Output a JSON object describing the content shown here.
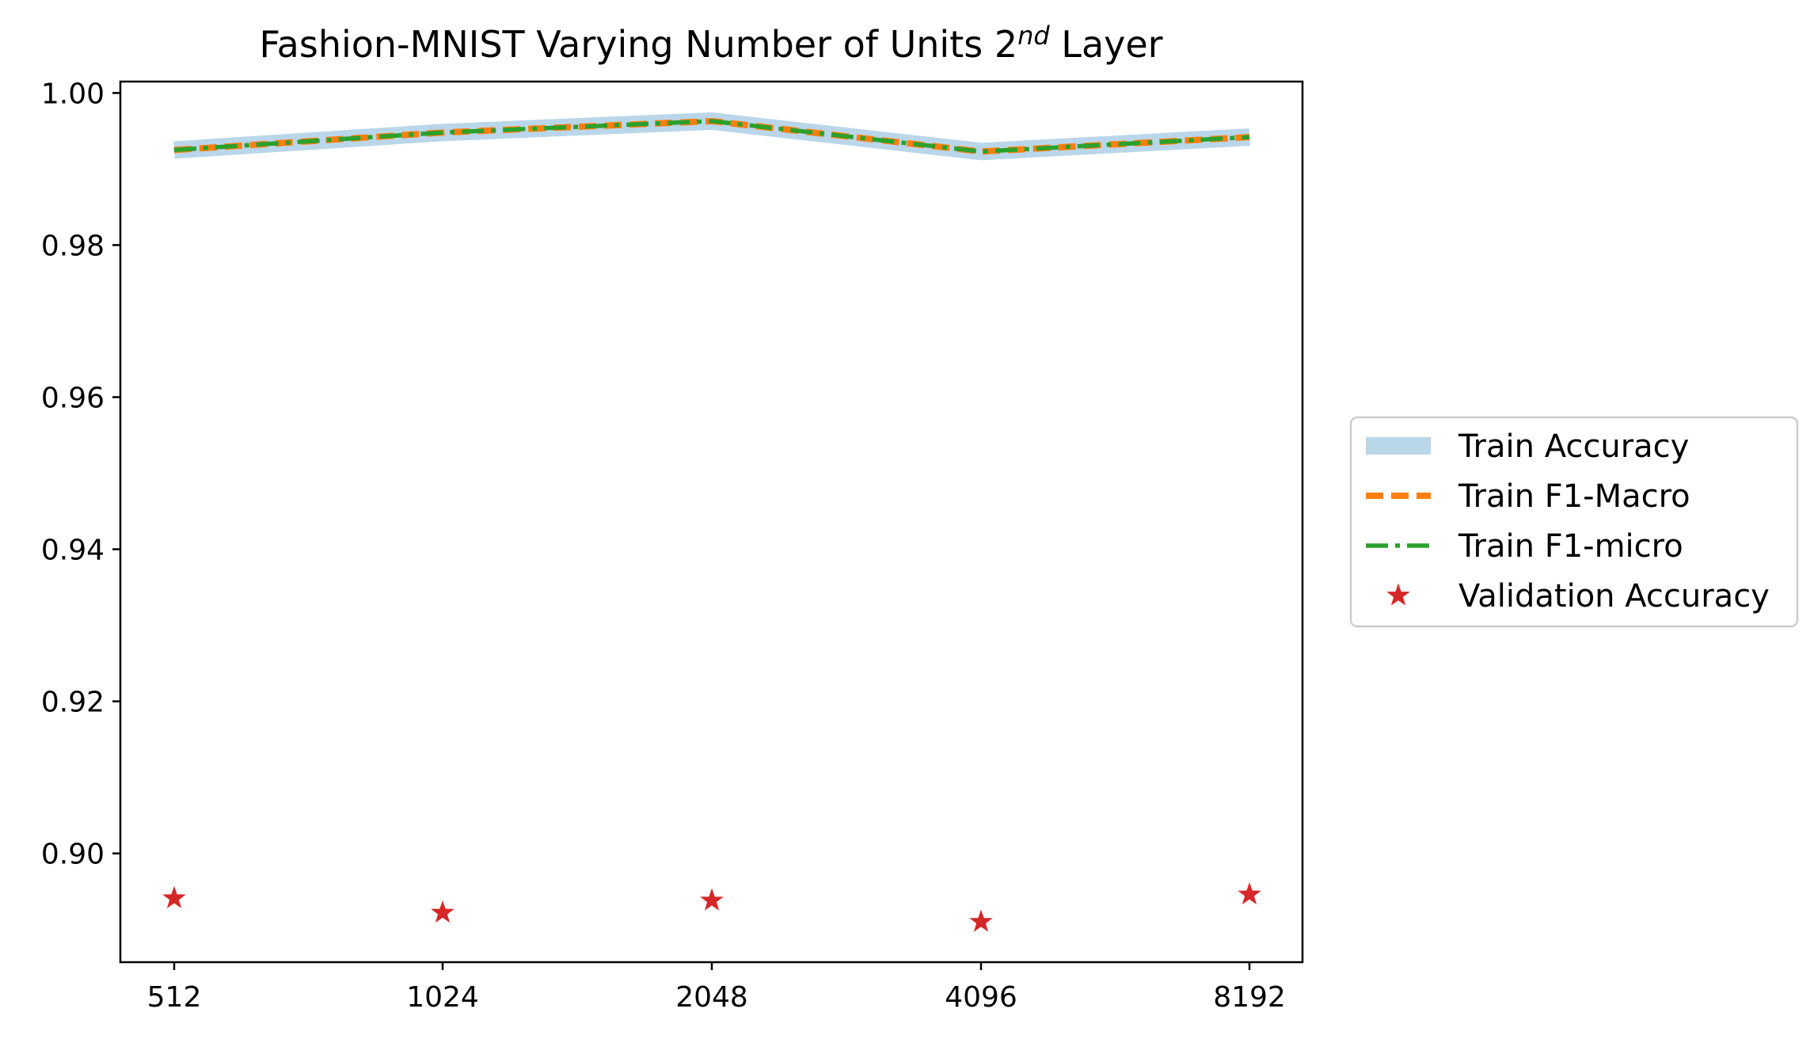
{
  "chart_data": {
    "type": "line",
    "title_prefix": "Fashion-MNIST Varying Number of Units 2",
    "title_superscript": "nd",
    "title_suffix": " Layer",
    "xlabel": "",
    "ylabel": "",
    "categories": [
      "512",
      "1024",
      "2048",
      "4096",
      "8192"
    ],
    "ylim": [
      0.8857,
      1.0015
    ],
    "yticks": [
      0.9,
      0.92,
      0.94,
      0.96,
      0.98,
      1.0
    ],
    "ytick_labels": [
      "0.90",
      "0.92",
      "0.94",
      "0.96",
      "0.98",
      "1.00"
    ],
    "grid": false,
    "legend_position": "center-right, outside plot",
    "series": [
      {
        "name": "Train Accuracy",
        "style": "thick-translucent-line",
        "color": "#aecfe6",
        "values": [
          0.9925,
          0.9948,
          0.9963,
          0.9923,
          0.9942
        ]
      },
      {
        "name": "Train F1-Macro",
        "style": "dashed-line",
        "color": "#ff7f0e",
        "values": [
          0.9925,
          0.9948,
          0.9963,
          0.9923,
          0.9942
        ]
      },
      {
        "name": "Train F1-micro",
        "style": "dash-dot-line",
        "color": "#2ca02c",
        "values": [
          0.9925,
          0.9948,
          0.9963,
          0.9923,
          0.9942
        ]
      },
      {
        "name": "Validation Accuracy",
        "style": "star-markers",
        "color": "#d62728",
        "values": [
          0.8941,
          0.8922,
          0.8938,
          0.891,
          0.8946
        ]
      }
    ]
  }
}
